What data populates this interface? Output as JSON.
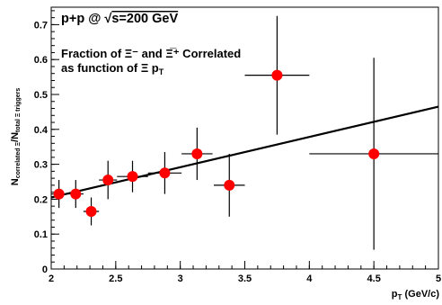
{
  "chart_data": {
    "type": "scatter",
    "title": "p+p @ √s=200 GeV",
    "title_parts": {
      "prefix": "p+p @ ",
      "sqrt": "√",
      "s_eq": "s=200 GeV"
    },
    "annotation_line1": "Fraction of Ξ⁻ and Ξ̅⁺ Correlated",
    "annotation_line2": "as function of Ξ p",
    "annotation_line2_sub": "T",
    "xlabel": "p",
    "xlabel_sub": "T",
    "xlabel_unit": " (GeV/c)",
    "ylabel_main": "N",
    "ylabel_sub1": "correlated Ξ",
    "ylabel_slash": "/N",
    "ylabel_sub2": "total Ξ triggers",
    "xlim": [
      2.0,
      5.0
    ],
    "ylim": [
      0.0,
      0.75
    ],
    "x_ticks": [
      2,
      2.5,
      3,
      3.5,
      4,
      4.5,
      5
    ],
    "x_tick_labels": [
      "2",
      "2.5",
      "3",
      "3.5",
      "4",
      "4.5",
      "5"
    ],
    "y_ticks": [
      0,
      0.1,
      0.2,
      0.3,
      0.4,
      0.5,
      0.6,
      0.7
    ],
    "y_tick_labels": [
      "0",
      "0.1",
      "0.2",
      "0.3",
      "0.4",
      "0.5",
      "0.6",
      "0.7"
    ],
    "grid": false,
    "points": [
      {
        "x": 2.06,
        "y": 0.215,
        "xerr": 0.06,
        "yerr": 0.04
      },
      {
        "x": 2.19,
        "y": 0.215,
        "xerr": 0.06,
        "yerr": 0.04
      },
      {
        "x": 2.31,
        "y": 0.165,
        "xerr": 0.06,
        "yerr": 0.04
      },
      {
        "x": 2.44,
        "y": 0.255,
        "xerr": 0.07,
        "yerr": 0.055
      },
      {
        "x": 2.63,
        "y": 0.265,
        "xerr": 0.12,
        "yerr": 0.045
      },
      {
        "x": 2.88,
        "y": 0.275,
        "xerr": 0.13,
        "yerr": 0.06
      },
      {
        "x": 3.13,
        "y": 0.33,
        "xerr": 0.12,
        "yerr": 0.075
      },
      {
        "x": 3.38,
        "y": 0.24,
        "xerr": 0.12,
        "yerr": 0.09
      },
      {
        "x": 3.75,
        "y": 0.555,
        "xerr": 0.25,
        "yerr": 0.17
      },
      {
        "x": 4.5,
        "y": 0.33,
        "xerr": 0.5,
        "yerr": 0.275
      }
    ],
    "fit_line": {
      "x": [
        2.0,
        5.0
      ],
      "y": [
        0.205,
        0.465
      ]
    },
    "marker_color": "#ff0000",
    "line_color": "#000000"
  }
}
